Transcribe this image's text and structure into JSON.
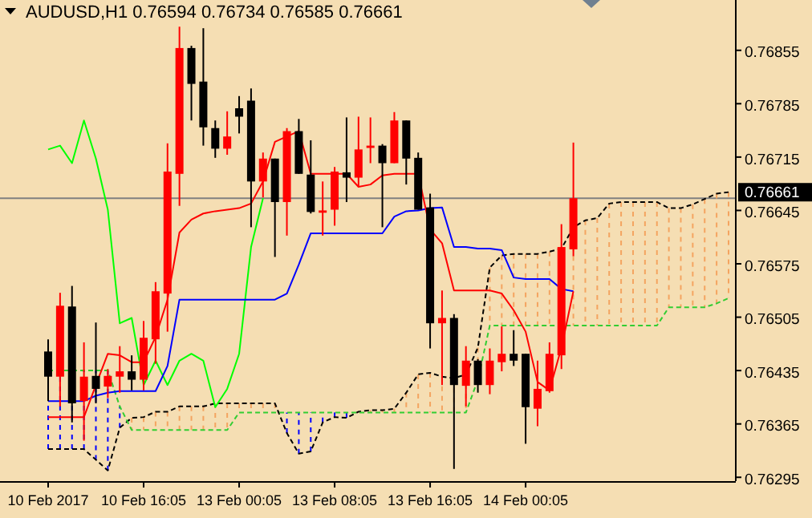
{
  "chart_data": {
    "type": "candlestick",
    "title": "AUDUSD,H1  0.76594 0.76734 0.76585 0.76661",
    "categories": [
      "10 Feb 2017",
      null,
      null,
      null,
      null,
      null,
      null,
      null,
      "10 Feb 16:05",
      null,
      null,
      null,
      null,
      null,
      null,
      null,
      "13 Feb 00:05",
      null,
      null,
      null,
      null,
      null,
      null,
      null,
      "13 Feb 08:05",
      null,
      null,
      null,
      null,
      null,
      null,
      null,
      "13 Feb 16:05",
      null,
      null,
      null,
      null,
      null,
      null,
      null,
      "14 Feb 00:05",
      null,
      null,
      null,
      null,
      null,
      null,
      null,
      null,
      null,
      null,
      null,
      null,
      null,
      null,
      null,
      null,
      null
    ],
    "ylim": [
      0.7629,
      0.76921
    ],
    "yticks": [
      0.76295,
      0.76365,
      0.76435,
      0.76505,
      0.76575,
      0.76645,
      0.76715,
      0.76785,
      0.76855
    ],
    "grid": false,
    "ref_lines": [
      {
        "axis": "y",
        "value": 0.76661,
        "label": "0.76661",
        "color": "#808080"
      }
    ],
    "series": [
      {
        "type": "line",
        "color": "#000000",
        "line_style": "dashed",
        "values": [
          0.76332,
          0.76332,
          0.76332,
          0.76332,
          0.76318,
          0.76304,
          0.7636,
          0.76373,
          0.76374,
          0.76381,
          0.76381,
          0.76388,
          0.76388,
          0.76388,
          0.76392,
          0.76392,
          0.76392,
          0.76392,
          0.76392,
          0.76392,
          0.76353,
          0.76326,
          0.76329,
          0.76367,
          0.76374,
          0.76373,
          0.76381,
          0.76383,
          0.76383,
          0.76385,
          0.76406,
          0.7643,
          0.76432,
          0.76427,
          0.76425,
          0.7643,
          0.76465,
          0.7657,
          0.76586,
          0.76588,
          0.76588,
          0.76588,
          0.76591,
          0.76595,
          0.76623,
          0.76632,
          0.76635,
          0.76654,
          0.76656,
          0.76656,
          0.76656,
          0.76656,
          0.76648,
          0.76648,
          0.76653,
          0.7666,
          0.76667,
          0.76669
        ]
      },
      {
        "type": "line",
        "color": "#32cd32",
        "line_style": "dashed",
        "values": [
          0.76435,
          0.76435,
          0.76435,
          0.76435,
          0.76435,
          0.76435,
          0.76388,
          0.76357,
          0.76357,
          0.76357,
          0.76357,
          0.76357,
          0.76357,
          0.76357,
          0.76357,
          0.76357,
          0.7638,
          0.7638,
          0.7638,
          0.7638,
          0.7638,
          0.7638,
          0.7638,
          0.7638,
          0.7638,
          0.7638,
          0.7638,
          0.7638,
          0.7638,
          0.7638,
          0.7638,
          0.7638,
          0.7638,
          0.7638,
          0.7638,
          0.7638,
          0.76423,
          0.76494,
          0.76494,
          0.76494,
          0.76494,
          0.76494,
          0.76494,
          0.76494,
          0.76494,
          0.76494,
          0.76494,
          0.76494,
          0.76494,
          0.76494,
          0.76494,
          0.76494,
          0.76518,
          0.76518,
          0.76518,
          0.76518,
          0.76523,
          0.7653
        ]
      },
      {
        "type": "line",
        "color": "#00ff00",
        "line_style": "solid",
        "values": [
          0.76725,
          0.7673,
          0.76707,
          0.76763,
          0.76713,
          0.76646,
          0.76497,
          0.76504,
          0.76416,
          0.76448,
          0.76416,
          0.76448,
          0.76457,
          0.76448,
          0.76387,
          0.76411,
          0.76457,
          0.76597,
          0.76661,
          null,
          null,
          null,
          null,
          null,
          null,
          null,
          null,
          null,
          null,
          null,
          null,
          null,
          null,
          null,
          null,
          null,
          null,
          null,
          null,
          null,
          null,
          null,
          null,
          null,
          null,
          null,
          null,
          null,
          null,
          null,
          null,
          null,
          null,
          null,
          null,
          null,
          null,
          null
        ]
      },
      {
        "type": "line",
        "color": "#0000ff",
        "line_style": "solid",
        "values": [
          0.76395,
          0.76395,
          0.76395,
          0.76395,
          0.76402,
          0.76406,
          0.76408,
          0.76408,
          0.76408,
          0.76408,
          0.76441,
          0.76528,
          0.76528,
          0.76528,
          0.76528,
          0.76528,
          0.76528,
          0.76528,
          0.76528,
          0.76528,
          0.76536,
          0.76574,
          0.76615,
          0.76615,
          0.76615,
          0.76615,
          0.76615,
          0.76615,
          0.76615,
          0.76637,
          0.76644,
          0.76645,
          0.76648,
          0.76649,
          0.76597,
          0.76597,
          0.76595,
          0.76595,
          0.76593,
          0.76557,
          0.76555,
          0.76555,
          0.76555,
          0.76542,
          0.76539,
          null,
          null,
          null,
          null,
          null,
          null,
          null,
          null,
          null,
          null,
          null,
          null,
          null
        ]
      },
      {
        "type": "line",
        "color": "#ff0000",
        "line_style": "solid",
        "values": [
          0.76374,
          0.76374,
          0.76374,
          0.76374,
          0.76416,
          0.76457,
          0.76455,
          0.76446,
          0.76446,
          0.76479,
          0.76528,
          0.76616,
          0.76633,
          0.76641,
          0.76644,
          0.76646,
          0.76648,
          0.76654,
          0.76683,
          0.76735,
          0.76742,
          0.76749,
          0.76693,
          0.76693,
          0.76693,
          0.76693,
          0.76676,
          0.76679,
          0.76691,
          0.76693,
          0.76693,
          0.76693,
          0.7662,
          0.76602,
          0.7654,
          0.7654,
          0.7654,
          0.7654,
          0.76536,
          0.76514,
          0.76486,
          0.7642,
          0.76409,
          0.76465,
          0.76539,
          null,
          null,
          null,
          null,
          null,
          null,
          null,
          null,
          null,
          null,
          null,
          null,
          null
        ]
      }
    ],
    "ohlc": [
      [
        0.7646,
        0.76476,
        0.76395,
        0.76427
      ],
      [
        0.76427,
        0.76537,
        0.76388,
        0.7652
      ],
      [
        0.76519,
        0.76546,
        0.76367,
        0.76392
      ],
      [
        0.76395,
        0.76472,
        0.76343,
        0.76427
      ],
      [
        0.76428,
        0.76498,
        0.76392,
        0.76411
      ],
      [
        0.76414,
        0.76437,
        0.76399,
        0.76428
      ],
      [
        0.76427,
        0.76467,
        0.76406,
        0.76434
      ],
      [
        0.76434,
        0.76455,
        0.76409,
        0.76423
      ],
      [
        0.76423,
        0.765,
        0.76409,
        0.76478
      ],
      [
        0.76476,
        0.76551,
        0.76444,
        0.76539
      ],
      [
        0.76536,
        0.76733,
        0.76486,
        0.76696
      ],
      [
        0.76693,
        0.76886,
        0.76651,
        0.76858
      ],
      [
        0.76858,
        0.76861,
        0.76763,
        0.76811
      ],
      [
        0.76814,
        0.76884,
        0.7673,
        0.76754
      ],
      [
        0.76753,
        0.76763,
        0.76714,
        0.76726
      ],
      [
        0.76726,
        0.76775,
        0.76718,
        0.76742
      ],
      [
        0.76779,
        0.76795,
        0.76746,
        0.76768
      ],
      [
        0.76789,
        0.76805,
        0.76623,
        0.76683
      ],
      [
        0.76683,
        0.76721,
        0.76662,
        0.76713
      ],
      [
        0.76713,
        0.76713,
        0.76584,
        0.76656
      ],
      [
        0.76656,
        0.76753,
        0.76612,
        0.76749
      ],
      [
        0.76749,
        0.76765,
        0.76693,
        0.76693
      ],
      [
        0.76692,
        0.76737,
        0.76641,
        0.76643
      ],
      [
        0.76642,
        0.76683,
        0.76612,
        0.76645
      ],
      [
        0.76646,
        0.76702,
        0.76625,
        0.76696
      ],
      [
        0.76695,
        0.76767,
        0.76656,
        0.76688
      ],
      [
        0.76688,
        0.76768,
        0.76676,
        0.76725
      ],
      [
        0.76727,
        0.76767,
        0.76707,
        0.7673
      ],
      [
        0.7673,
        0.76732,
        0.76623,
        0.76707
      ],
      [
        0.76707,
        0.76774,
        0.76707,
        0.76763
      ],
      [
        0.76763,
        0.76763,
        0.76679,
        0.76713
      ],
      [
        0.76714,
        0.76721,
        0.76646,
        0.76646
      ],
      [
        0.76649,
        0.76667,
        0.76464,
        0.76497
      ],
      [
        0.76497,
        0.7654,
        0.76416,
        0.76504
      ],
      [
        0.76504,
        0.76509,
        0.76306,
        0.76416
      ],
      [
        0.76415,
        0.76467,
        0.76388,
        0.76448
      ],
      [
        0.76448,
        0.7645,
        0.76406,
        0.76416
      ],
      [
        0.76416,
        0.76464,
        0.76404,
        0.76448
      ],
      [
        0.76446,
        0.76493,
        0.76434,
        0.76457
      ],
      [
        0.76457,
        0.76488,
        0.76441,
        0.76448
      ],
      [
        0.76457,
        0.76457,
        0.76339,
        0.76387
      ],
      [
        0.76385,
        0.76448,
        0.76362,
        0.76411
      ],
      [
        0.76408,
        0.76472,
        0.76406,
        0.76457
      ],
      [
        0.76455,
        0.76627,
        0.76437,
        0.76597
      ],
      [
        0.76594,
        0.76734,
        0.76585,
        0.76661
      ],
      null,
      null,
      null,
      null,
      null,
      null,
      null,
      null,
      null,
      null,
      null,
      null,
      null
    ],
    "colors": [
      "#000000",
      "#ff0000",
      "#000000",
      "#ff0000",
      "#000000",
      "#ff0000",
      "#ff0000",
      "#000000",
      "#ff0000",
      "#ff0000",
      "#ff0000",
      "#ff0000",
      "#000000",
      "#000000",
      "#000000",
      "#ff0000",
      "#000000",
      "#000000",
      "#ff0000",
      "#000000",
      "#ff0000",
      "#000000",
      "#000000",
      "#ff0000",
      "#ff0000",
      "#000000",
      "#ff0000",
      "#ff0000",
      "#000000",
      "#ff0000",
      "#000000",
      "#000000",
      "#000000",
      "#ff0000",
      "#000000",
      "#ff0000",
      "#000000",
      "#ff0000",
      "#ff0000",
      "#000000",
      "#000000",
      "#ff0000",
      "#ff0000",
      "#ff0000",
      "#ff0000",
      null,
      null,
      null,
      null,
      null,
      null,
      null,
      null,
      null,
      null,
      null,
      null,
      null
    ]
  }
}
